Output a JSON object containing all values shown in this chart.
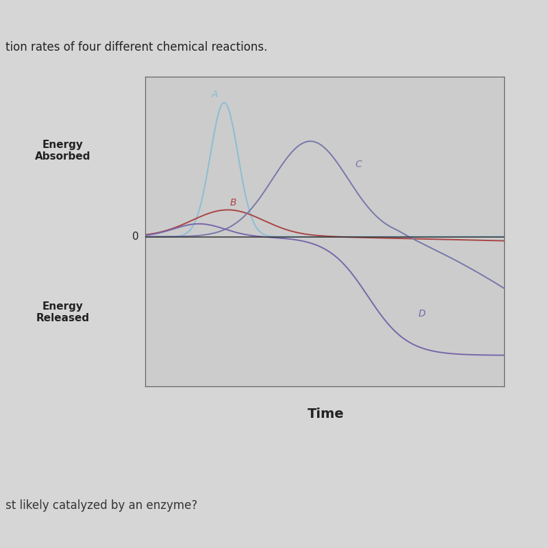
{
  "title_text": "tion rates of four different chemical reactions.",
  "xlabel": "Time",
  "ylabel_top": "Energy\nAbsorbed",
  "ylabel_bottom": "Energy\nReleased",
  "ylabel_zero": "0",
  "background_color": "#d6d6d6",
  "header_color": "#5567a8",
  "plot_bg": "#cccccc",
  "curve_A_color": "#8bbdd4",
  "curve_B_color": "#aa4444",
  "curve_C_color": "#7777aa",
  "curve_D_color": "#7766aa",
  "zero_line_color": "#333333",
  "label_A_color": "#8bbdd4",
  "label_B_color": "#aa4444",
  "label_C_color": "#7777aa",
  "label_D_color": "#7766aa"
}
